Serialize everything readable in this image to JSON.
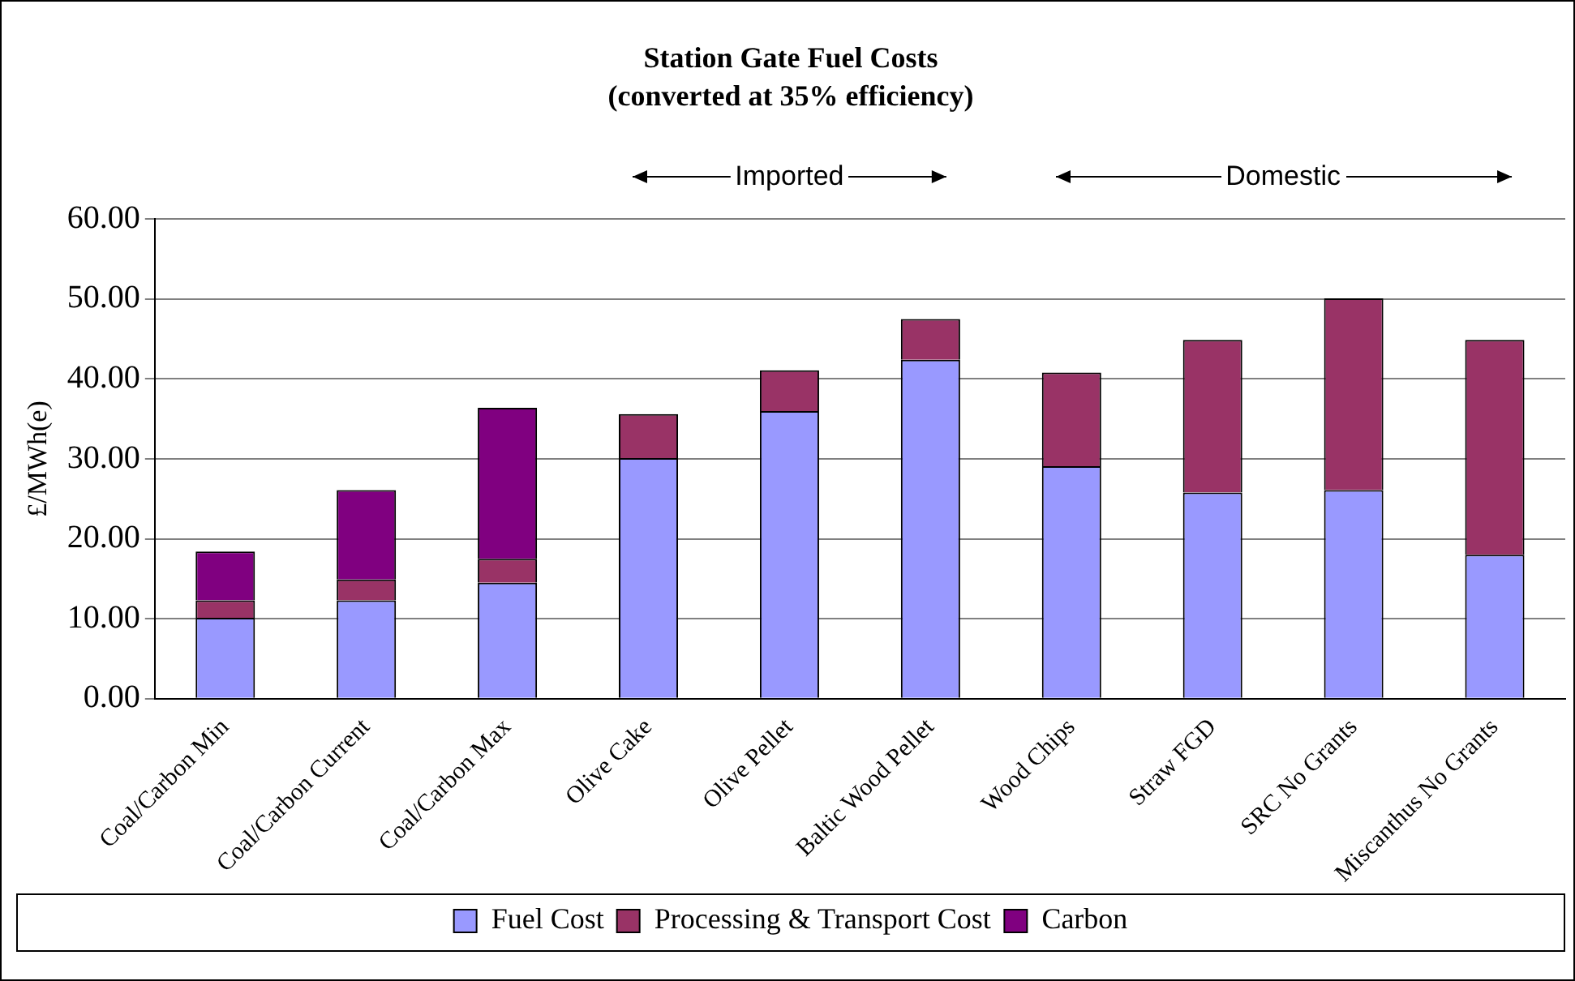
{
  "chart_data": {
    "type": "bar",
    "stacked": true,
    "title": "Station Gate Fuel Costs",
    "subtitle": "(converted at 35% efficiency)",
    "ylabel": "£/MWh(e)",
    "categories": [
      "Coal/Carbon Min",
      "Coal/Carbon Current",
      "Coal/Carbon Max",
      "Olive Cake",
      "Olive Pellet",
      "Baltic Wood Pellet",
      "Wood Chips",
      "Straw FGD",
      "SRC No Grants",
      "Miscanthus No Grants"
    ],
    "series": [
      {
        "name": "Fuel Cost",
        "color": "#9999ff",
        "values": [
          10.1,
          12.3,
          14.5,
          30.1,
          36.0,
          42.4,
          29.1,
          25.8,
          26.1,
          18.0
        ]
      },
      {
        "name": "Processing & Transport Cost",
        "color": "#993366",
        "values": [
          2.2,
          2.6,
          3.0,
          5.5,
          5.1,
          5.1,
          11.7,
          19.1,
          24.0,
          26.9
        ]
      },
      {
        "name": "Carbon",
        "color": "#800080",
        "values": [
          6.1,
          11.2,
          18.9,
          null,
          null,
          null,
          null,
          null,
          null,
          null
        ]
      }
    ],
    "ylim": [
      0,
      60
    ],
    "yticks": [
      {
        "value": 0,
        "label": "0.00"
      },
      {
        "value": 10,
        "label": "10.00"
      },
      {
        "value": 20,
        "label": "20.00"
      },
      {
        "value": 30,
        "label": "30.00"
      },
      {
        "value": 40,
        "label": "40.00"
      },
      {
        "value": 50,
        "label": "50.00"
      },
      {
        "value": 60,
        "label": "60.00"
      }
    ],
    "grid": "y",
    "legend": "bottom",
    "annotations": [
      "Imported",
      "Domestic"
    ]
  }
}
